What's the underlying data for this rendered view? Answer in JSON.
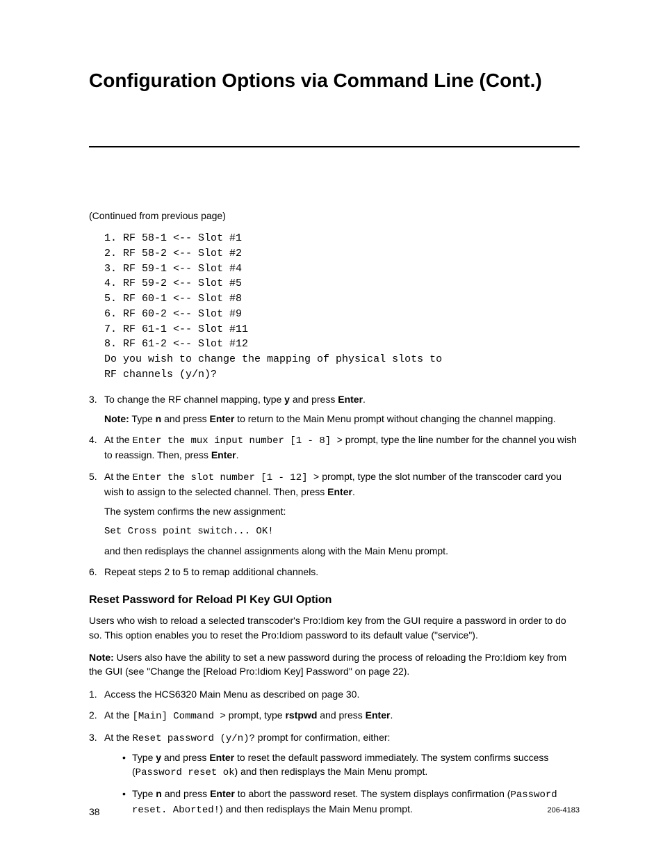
{
  "title": "Configuration Options via Command Line (Cont.)",
  "continued": "(Continued from previous page)",
  "mono_lines": [
    "1. RF 58-1 <-- Slot #1",
    "2. RF 58-2 <-- Slot #2",
    "3. RF 59-1 <-- Slot #4",
    "4. RF 59-2 <-- Slot #5",
    "5. RF 60-1 <-- Slot #8",
    "6. RF 60-2 <-- Slot #9",
    "7. RF 61-1 <-- Slot #11",
    "8. RF 61-2 <-- Slot #12",
    "Do you wish to change the mapping of physical slots to",
    "RF channels (y/n)?"
  ],
  "step3": {
    "num": "3.",
    "t1": "To change the RF channel mapping, type ",
    "y": "y",
    "t2": " and press ",
    "enter": "Enter",
    "t3": ".",
    "note_label": "Note:",
    "note_t1": " Type ",
    "n": "n",
    "note_t2": " and press ",
    "note_t3": " to return to the Main Menu prompt without changing the channel mapping."
  },
  "step4": {
    "num": "4.",
    "t1": "At the ",
    "mono": "Enter the mux input number [1 - 8] >",
    "t2": " prompt, type the line number for the channel you wish to reassign. Then, press ",
    "enter": "Enter",
    "t3": "."
  },
  "step5": {
    "num": "5.",
    "t1": "At the ",
    "mono": "Enter the slot number [1 - 12] >",
    "t2": " prompt, type the slot number of the transcoder card you wish to assign to the selected channel. Then, press ",
    "enter": "Enter",
    "t3": ".",
    "confirm": "The system confirms the new assignment:",
    "mono2": "Set Cross point switch... OK!",
    "after": "and then redisplays the channel assignments along with the Main Menu prompt."
  },
  "step6": {
    "num": "6.",
    "t1": "Repeat steps 2 to 5 to remap additional channels."
  },
  "section2_title": "Reset Password for Reload PI Key GUI Option",
  "para1": "Users who wish to reload a selected transcoder's Pro:Idiom key from the GUI require a password in order to do so. This option enables you to reset the Pro:Idiom password to its default value (\"service\").",
  "para2": {
    "label": "Note:",
    "text": " Users also have the ability to set a new password during the process of reloading the Pro:Idiom key from the GUI (see \"Change the [Reload Pro:Idiom Key] Password\" on page 22)."
  },
  "r1": {
    "num": "1.",
    "t1": "Access the HCS6320 Main Menu as described on page 30."
  },
  "r2": {
    "num": "2.",
    "t1": "At the ",
    "mono": "[Main] Command >",
    "t2": " prompt, type ",
    "cmd": "rstpwd",
    "t3": " and press ",
    "enter": "Enter",
    "t4": "."
  },
  "r3": {
    "num": "3.",
    "t1": "At the ",
    "mono": "Reset password (y/n)?",
    "t2": " prompt for confirmation, either:"
  },
  "b1": {
    "t1": "Type ",
    "y": "y",
    "t2": " and press ",
    "enter": "Enter",
    "t3": " to reset the default password immediately. The system confirms success (",
    "mono": "Password reset ok",
    "t4": ") and then redisplays the Main Menu prompt."
  },
  "b2": {
    "t1": "Type ",
    "n": "n",
    "t2": " and press ",
    "enter": "Enter",
    "t3": " to abort the password reset. The system displays confirmation (",
    "mono": "Password reset. Aborted!",
    "t4": ") and then redisplays the Main Menu prompt."
  },
  "footer": {
    "page": "38",
    "doc": "206-4183"
  }
}
